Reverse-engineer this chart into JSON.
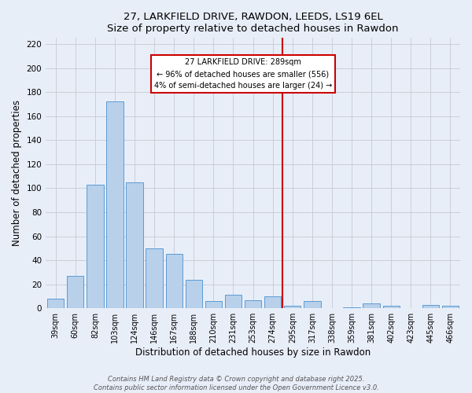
{
  "title": "27, LARKFIELD DRIVE, RAWDON, LEEDS, LS19 6EL",
  "subtitle": "Size of property relative to detached houses in Rawdon",
  "xlabel": "Distribution of detached houses by size in Rawdon",
  "ylabel": "Number of detached properties",
  "bar_labels": [
    "39sqm",
    "60sqm",
    "82sqm",
    "103sqm",
    "124sqm",
    "146sqm",
    "167sqm",
    "188sqm",
    "210sqm",
    "231sqm",
    "253sqm",
    "274sqm",
    "295sqm",
    "317sqm",
    "338sqm",
    "359sqm",
    "381sqm",
    "402sqm",
    "423sqm",
    "445sqm",
    "466sqm"
  ],
  "bar_values": [
    8,
    27,
    103,
    172,
    105,
    50,
    45,
    24,
    6,
    11,
    7,
    10,
    2,
    6,
    0,
    1,
    4,
    2,
    0,
    3,
    2
  ],
  "bar_color": "#b8d0ea",
  "bar_edge_color": "#5b9bd5",
  "vline_index": 12,
  "vline_color": "#cc0000",
  "annotation_title": "27 LARKFIELD DRIVE: 289sqm",
  "annotation_line1": "← 96% of detached houses are smaller (556)",
  "annotation_line2": "4% of semi-detached houses are larger (24) →",
  "annotation_box_facecolor": "#ffffff",
  "annotation_box_edgecolor": "#cc0000",
  "ylim": [
    0,
    225
  ],
  "yticks": [
    0,
    20,
    40,
    60,
    80,
    100,
    120,
    140,
    160,
    180,
    200,
    220
  ],
  "footer1": "Contains HM Land Registry data © Crown copyright and database right 2025.",
  "footer2": "Contains public sector information licensed under the Open Government Licence v3.0.",
  "background_color": "#e8eef8",
  "plot_bg_color": "#e8eef8",
  "grid_color": "#c8c8d0"
}
